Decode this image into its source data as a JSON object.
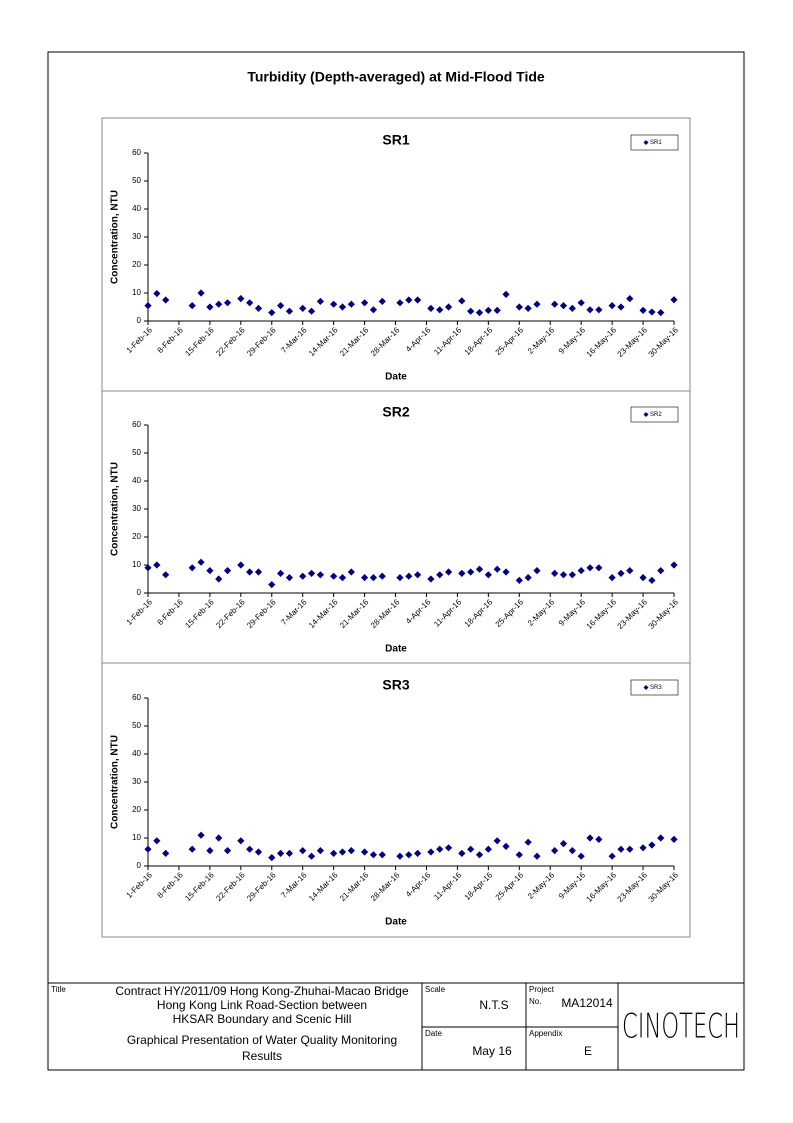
{
  "title": "Turbidity (Depth-averaged) at Mid-Flood Tide",
  "chart_data": [
    {
      "type": "scatter",
      "title": "SR1",
      "xlabel": "Date",
      "ylabel": "Concentration, NTU",
      "legend": "upper right",
      "x": [
        "1-Feb-16",
        "3-Feb-16",
        "5-Feb-16",
        "11-Feb-16",
        "13-Feb-16",
        "15-Feb-16",
        "17-Feb-16",
        "19-Feb-16",
        "22-Feb-16",
        "24-Feb-16",
        "26-Feb-16",
        "29-Feb-16",
        "2-Mar-16",
        "4-Mar-16",
        "7-Mar-16",
        "9-Mar-16",
        "11-Mar-16",
        "14-Mar-16",
        "16-Mar-16",
        "18-Mar-16",
        "21-Mar-16",
        "23-Mar-16",
        "25-Mar-16",
        "29-Mar-16",
        "31-Mar-16",
        "2-Apr-16",
        "5-Apr-16",
        "7-Apr-16",
        "9-Apr-16",
        "12-Apr-16",
        "14-Apr-16",
        "16-Apr-16",
        "18-Apr-16",
        "20-Apr-16",
        "22-Apr-16",
        "25-Apr-16",
        "27-Apr-16",
        "29-Apr-16",
        "3-May-16",
        "5-May-16",
        "7-May-16",
        "9-May-16",
        "11-May-16",
        "13-May-16",
        "16-May-16",
        "18-May-16",
        "20-May-16",
        "23-May-16",
        "25-May-16",
        "27-May-16",
        "30-May-16"
      ],
      "series": [
        {
          "name": "SR1",
          "color": "#000080",
          "values": [
            5.5,
            9.8,
            7.5,
            5.5,
            10,
            5,
            6,
            6.5,
            8,
            6.5,
            4.5,
            3,
            5.5,
            3.5,
            4.5,
            3.5,
            7,
            6,
            5,
            6,
            6.5,
            4,
            7,
            6.5,
            7.5,
            7.5,
            4.5,
            4,
            5,
            7.2,
            3.5,
            3,
            3.8,
            3.8,
            9.5,
            5,
            4.5,
            6,
            6,
            5.5,
            4.5,
            6.5,
            4,
            4,
            5.5,
            5,
            8,
            3.8,
            3.2,
            3,
            7.6
          ]
        }
      ],
      "xlim": [
        "1-Feb-16",
        "30-May-16"
      ],
      "xticks": [
        "1-Feb-16",
        "8-Feb-16",
        "15-Feb-16",
        "22-Feb-16",
        "29-Feb-16",
        "7-Mar-16",
        "14-Mar-16",
        "21-Mar-16",
        "28-Mar-16",
        "4-Apr-16",
        "11-Apr-16",
        "18-Apr-16",
        "25-Apr-16",
        "2-May-16",
        "9-May-16",
        "16-May-16",
        "23-May-16",
        "30-May-16"
      ],
      "ylim": [
        0,
        60
      ],
      "yticks": [
        0,
        10,
        20,
        30,
        40,
        50,
        60
      ]
    },
    {
      "type": "scatter",
      "title": "SR2",
      "xlabel": "Date",
      "ylabel": "Concentration, NTU",
      "legend": "upper right",
      "x": [
        "1-Feb-16",
        "3-Feb-16",
        "5-Feb-16",
        "11-Feb-16",
        "13-Feb-16",
        "15-Feb-16",
        "17-Feb-16",
        "19-Feb-16",
        "22-Feb-16",
        "24-Feb-16",
        "26-Feb-16",
        "29-Feb-16",
        "2-Mar-16",
        "4-Mar-16",
        "7-Mar-16",
        "9-Mar-16",
        "11-Mar-16",
        "14-Mar-16",
        "16-Mar-16",
        "18-Mar-16",
        "21-Mar-16",
        "23-Mar-16",
        "25-Mar-16",
        "29-Mar-16",
        "31-Mar-16",
        "2-Apr-16",
        "5-Apr-16",
        "7-Apr-16",
        "9-Apr-16",
        "12-Apr-16",
        "14-Apr-16",
        "16-Apr-16",
        "18-Apr-16",
        "20-Apr-16",
        "22-Apr-16",
        "25-Apr-16",
        "27-Apr-16",
        "29-Apr-16",
        "3-May-16",
        "5-May-16",
        "7-May-16",
        "9-May-16",
        "11-May-16",
        "13-May-16",
        "16-May-16",
        "18-May-16",
        "20-May-16",
        "23-May-16",
        "25-May-16",
        "27-May-16",
        "30-May-16"
      ],
      "series": [
        {
          "name": "SR2",
          "color": "#000080",
          "values": [
            9,
            10,
            6.5,
            9,
            11,
            8,
            5,
            8,
            10,
            7.5,
            7.5,
            3,
            7,
            5.5,
            6,
            7,
            6.5,
            6,
            5.5,
            7.5,
            5.5,
            5.5,
            6,
            5.5,
            6,
            6.5,
            5,
            6.5,
            7.5,
            7,
            7.5,
            8.5,
            6.5,
            8.5,
            7.5,
            4.5,
            5.5,
            8,
            7,
            6.5,
            6.5,
            8,
            9,
            9,
            5.5,
            7,
            8,
            5.5,
            4.5,
            8,
            10
          ]
        }
      ],
      "xlim": [
        "1-Feb-16",
        "30-May-16"
      ],
      "xticks": [
        "1-Feb-16",
        "8-Feb-16",
        "15-Feb-16",
        "22-Feb-16",
        "29-Feb-16",
        "7-Mar-16",
        "14-Mar-16",
        "21-Mar-16",
        "28-Mar-16",
        "4-Apr-16",
        "11-Apr-16",
        "18-Apr-16",
        "25-Apr-16",
        "2-May-16",
        "9-May-16",
        "16-May-16",
        "23-May-16",
        "30-May-16"
      ],
      "ylim": [
        0,
        60
      ],
      "yticks": [
        0,
        10,
        20,
        30,
        40,
        50,
        60
      ]
    },
    {
      "type": "scatter",
      "title": "SR3",
      "xlabel": "Date",
      "ylabel": "Concentration, NTU",
      "legend": "upper right",
      "x": [
        "1-Feb-16",
        "3-Feb-16",
        "5-Feb-16",
        "11-Feb-16",
        "13-Feb-16",
        "15-Feb-16",
        "17-Feb-16",
        "19-Feb-16",
        "22-Feb-16",
        "24-Feb-16",
        "26-Feb-16",
        "29-Feb-16",
        "2-Mar-16",
        "4-Mar-16",
        "7-Mar-16",
        "9-Mar-16",
        "11-Mar-16",
        "14-Mar-16",
        "16-Mar-16",
        "18-Mar-16",
        "21-Mar-16",
        "23-Mar-16",
        "25-Mar-16",
        "29-Mar-16",
        "31-Mar-16",
        "2-Apr-16",
        "5-Apr-16",
        "7-Apr-16",
        "9-Apr-16",
        "12-Apr-16",
        "14-Apr-16",
        "16-Apr-16",
        "18-Apr-16",
        "20-Apr-16",
        "22-Apr-16",
        "25-Apr-16",
        "27-Apr-16",
        "29-Apr-16",
        "3-May-16",
        "5-May-16",
        "7-May-16",
        "9-May-16",
        "11-May-16",
        "13-May-16",
        "16-May-16",
        "18-May-16",
        "20-May-16",
        "23-May-16",
        "25-May-16",
        "27-May-16",
        "30-May-16"
      ],
      "series": [
        {
          "name": "SR3",
          "color": "#000080",
          "values": [
            6,
            9,
            4.5,
            6,
            11,
            5.5,
            10,
            5.5,
            9,
            6,
            5,
            3,
            4.5,
            4.5,
            5.5,
            3.5,
            5.5,
            4.5,
            5,
            5.5,
            5,
            4,
            4,
            3.5,
            4,
            4.5,
            5,
            6,
            6.5,
            4.5,
            6,
            4,
            6,
            9,
            7,
            4,
            8.5,
            3.5,
            5.5,
            8,
            5.5,
            3.5,
            10,
            9.5,
            3.5,
            6,
            6,
            6.5,
            7.5,
            10,
            9.5
          ]
        }
      ],
      "xlim": [
        "1-Feb-16",
        "30-May-16"
      ],
      "xticks": [
        "1-Feb-16",
        "8-Feb-16",
        "15-Feb-16",
        "22-Feb-16",
        "29-Feb-16",
        "7-Mar-16",
        "14-Mar-16",
        "21-Mar-16",
        "28-Mar-16",
        "4-Apr-16",
        "11-Apr-16",
        "18-Apr-16",
        "25-Apr-16",
        "2-May-16",
        "9-May-16",
        "16-May-16",
        "23-May-16",
        "30-May-16"
      ],
      "ylim": [
        0,
        60
      ],
      "yticks": [
        0,
        10,
        20,
        30,
        40,
        50,
        60
      ]
    }
  ],
  "footer": {
    "title_label": "Title",
    "contract_lines": [
      "Contract HY/2011/09 Hong Kong-Zhuhai-Macao Bridge",
      "Hong Kong Link Road-Section between",
      "HKSAR Boundary and Scenic Hill"
    ],
    "description_lines": [
      "Graphical Presentation of Water Quality Monitoring",
      "Results"
    ],
    "scale_label": "Scale",
    "scale": "N.T.S",
    "project_label": "Project",
    "no_label": "No.",
    "project_no": "MA12014",
    "date_label": "Date",
    "date": "May 16",
    "appendix_label": "Appendix",
    "appendix": "E",
    "logo": "CINOTECH"
  }
}
